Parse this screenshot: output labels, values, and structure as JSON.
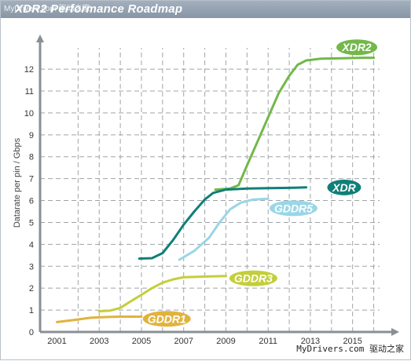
{
  "header": {
    "title": "XDR2 Performance Roadmap",
    "watermark_top": "MyDrivers.com 驱动之家"
  },
  "footer": {
    "watermark": "MyDrivers.com 驱动之家"
  },
  "colors": {
    "axis": "#8a8f94",
    "grid": "#a0a4a8",
    "XDR2": "#72b84a",
    "XDR": "#0f7f78",
    "GDDR5": "#9ad6e6",
    "GDDR3": "#c3cf3a",
    "GDDR1": "#e1b33c"
  },
  "chart_data": {
    "type": "line",
    "title": "XDR2 Performance Roadmap",
    "xlabel": "",
    "ylabel": "Datarate per pin / Gbps",
    "xlim": [
      2000.2,
      2016.5
    ],
    "ylim": [
      0,
      12.9
    ],
    "x_ticks": [
      2001,
      2003,
      2005,
      2007,
      2009,
      2011,
      2013,
      2015
    ],
    "x_tick_labels": [
      "2001",
      "2003",
      "2005",
      "2007",
      "2009",
      "2011",
      "2013",
      "2015"
    ],
    "x_grid": [
      2002,
      2003,
      2004,
      2005,
      2006,
      2007,
      2008,
      2009,
      2010,
      2011,
      2012,
      2013,
      2014,
      2015,
      2016
    ],
    "y_ticks": [
      0,
      1,
      2,
      3,
      4,
      5,
      6,
      7,
      8,
      9,
      10,
      11,
      12
    ],
    "y_tick_labels": [
      "0",
      "1",
      "2",
      "3",
      "4",
      "5",
      "6",
      "7",
      "8",
      "9",
      "10",
      "11",
      "12"
    ],
    "grid": true,
    "series": [
      {
        "name": "XDR2",
        "label_at": [
          2015.2,
          13.0
        ],
        "points": [
          [
            2008.5,
            6.5
          ],
          [
            2009.2,
            6.55
          ],
          [
            2009.6,
            6.7
          ],
          [
            2010.0,
            7.6
          ],
          [
            2010.5,
            8.7
          ],
          [
            2011.0,
            9.8
          ],
          [
            2011.5,
            10.9
          ],
          [
            2012.0,
            11.7
          ],
          [
            2012.4,
            12.2
          ],
          [
            2012.8,
            12.4
          ],
          [
            2013.5,
            12.48
          ],
          [
            2014.5,
            12.5
          ],
          [
            2015.5,
            12.52
          ],
          [
            2016.0,
            12.52
          ]
        ]
      },
      {
        "name": "XDR",
        "label_at": [
          2014.6,
          6.6
        ],
        "points": [
          [
            2004.9,
            3.35
          ],
          [
            2005.5,
            3.37
          ],
          [
            2006.0,
            3.6
          ],
          [
            2006.5,
            4.2
          ],
          [
            2007.0,
            4.9
          ],
          [
            2007.5,
            5.5
          ],
          [
            2008.0,
            6.05
          ],
          [
            2008.4,
            6.35
          ],
          [
            2009.0,
            6.5
          ],
          [
            2010.0,
            6.55
          ],
          [
            2011.0,
            6.57
          ],
          [
            2012.0,
            6.58
          ],
          [
            2012.8,
            6.6
          ]
        ]
      },
      {
        "name": "GDDR5",
        "label_at": [
          2012.2,
          5.65
        ],
        "points": [
          [
            2006.8,
            3.3
          ],
          [
            2007.5,
            3.7
          ],
          [
            2008.2,
            4.3
          ],
          [
            2008.7,
            5.0
          ],
          [
            2009.2,
            5.6
          ],
          [
            2009.7,
            5.9
          ],
          [
            2010.3,
            6.05
          ],
          [
            2011.0,
            6.08
          ]
        ]
      },
      {
        "name": "GDDR3",
        "label_at": [
          2010.3,
          2.45
        ],
        "points": [
          [
            2003.0,
            0.95
          ],
          [
            2003.5,
            0.97
          ],
          [
            2004.0,
            1.1
          ],
          [
            2004.5,
            1.4
          ],
          [
            2005.0,
            1.7
          ],
          [
            2005.5,
            2.0
          ],
          [
            2006.0,
            2.25
          ],
          [
            2006.5,
            2.4
          ],
          [
            2007.0,
            2.5
          ],
          [
            2008.0,
            2.53
          ],
          [
            2009.0,
            2.55
          ]
        ]
      },
      {
        "name": "GDDR1",
        "label_at": [
          2006.2,
          0.6
        ],
        "points": [
          [
            2001.0,
            0.45
          ],
          [
            2001.8,
            0.55
          ],
          [
            2002.6,
            0.65
          ],
          [
            2003.3,
            0.68
          ],
          [
            2004.0,
            0.7
          ],
          [
            2005.0,
            0.7
          ]
        ]
      }
    ]
  }
}
